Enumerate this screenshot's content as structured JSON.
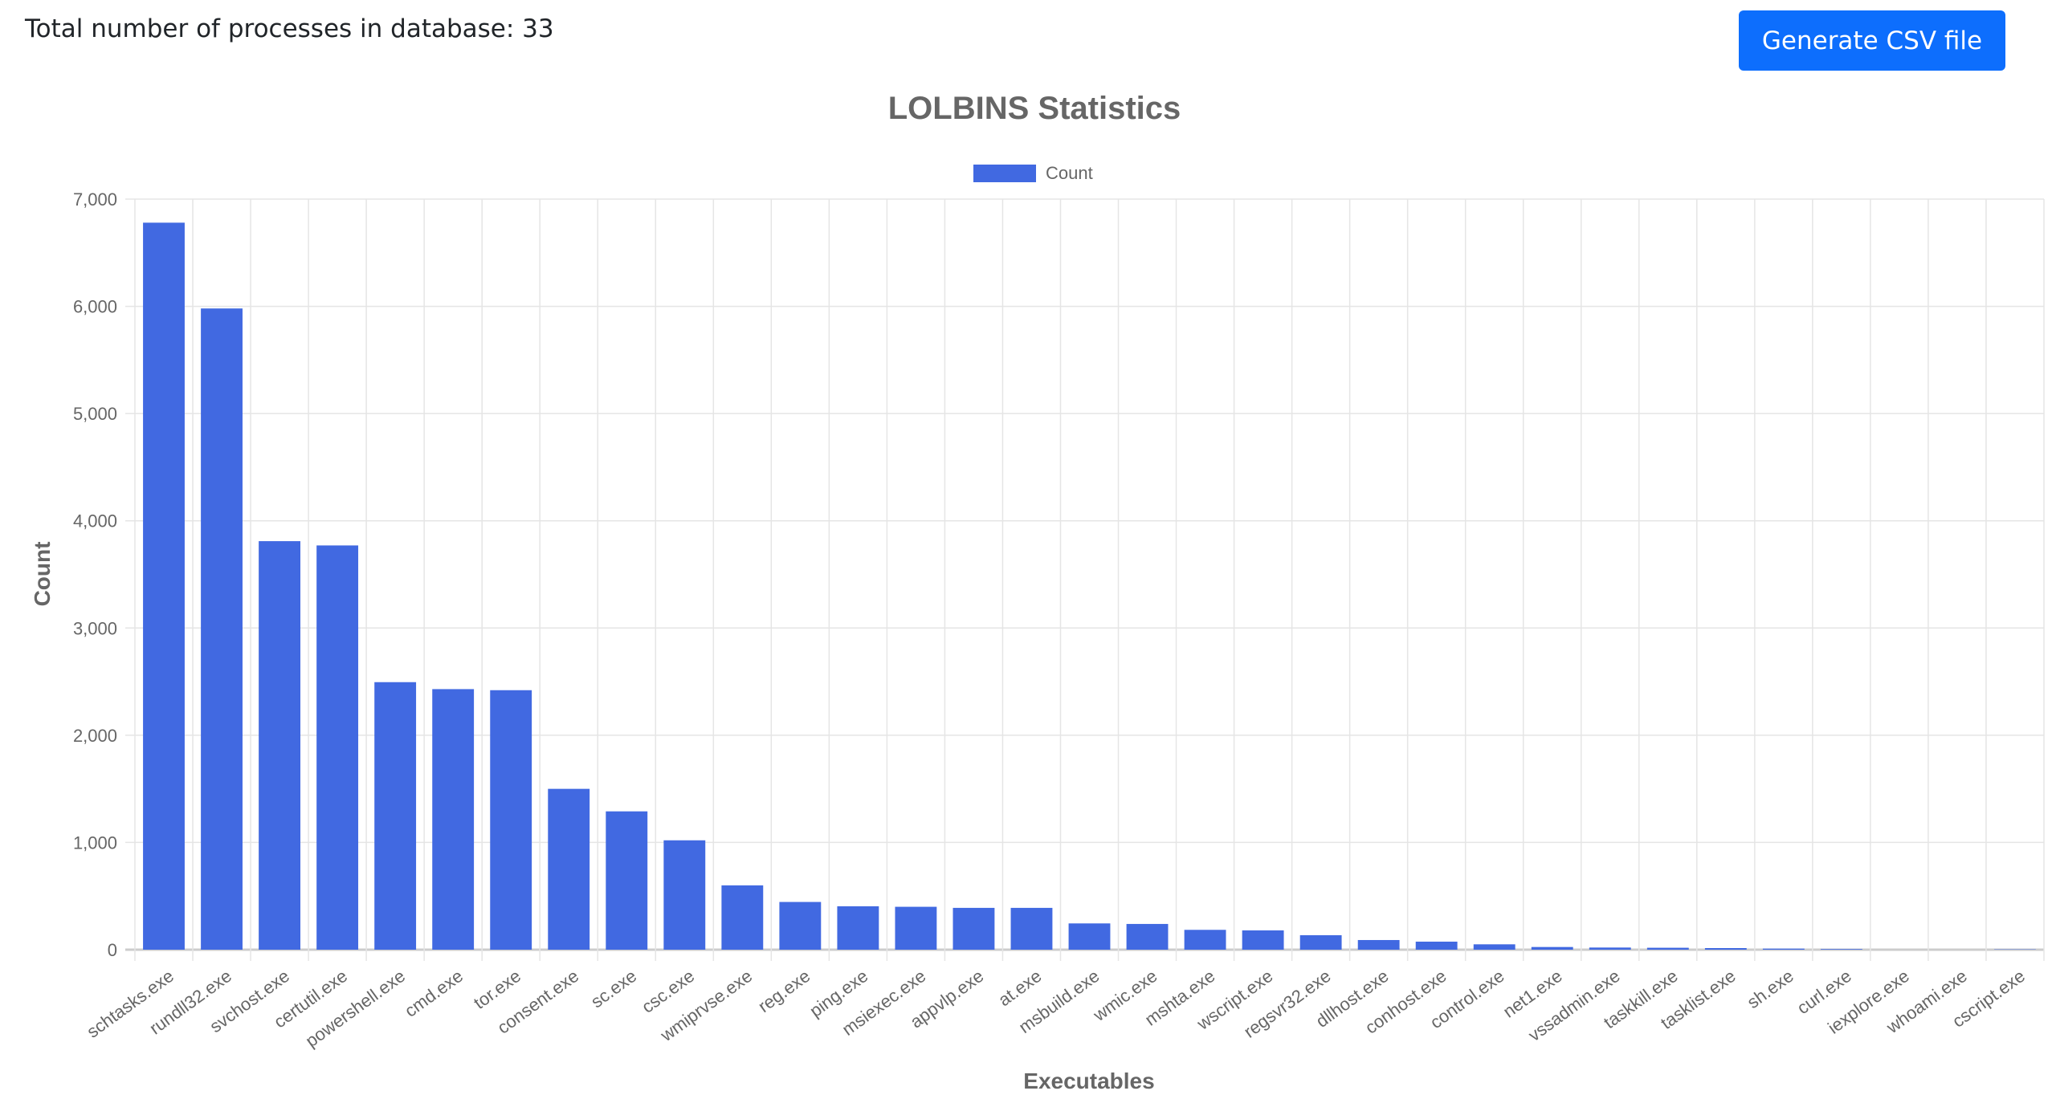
{
  "header": {
    "total_text": "Total number of processes in database: 33",
    "csv_button": "Generate CSV file"
  },
  "colors": {
    "bar": "#4169e1",
    "button": "#0d6efd"
  },
  "chart_data": {
    "type": "bar",
    "title": "LOLBINS Statistics",
    "xlabel": "Executables",
    "ylabel": "Count",
    "legend": {
      "entries": [
        "Count"
      ],
      "placement": "top-center"
    },
    "ylim": [
      0,
      7000
    ],
    "yticks": [
      0,
      1000,
      2000,
      3000,
      4000,
      5000,
      6000,
      7000
    ],
    "ytick_labels": [
      "0",
      "1,000",
      "2,000",
      "3,000",
      "4,000",
      "5,000",
      "6,000",
      "7,000"
    ],
    "grid": true,
    "categories": [
      "schtasks.exe",
      "rundll32.exe",
      "svchost.exe",
      "certutil.exe",
      "powershell.exe",
      "cmd.exe",
      "tor.exe",
      "consent.exe",
      "sc.exe",
      "csc.exe",
      "wmiprvse.exe",
      "reg.exe",
      "ping.exe",
      "msiexec.exe",
      "appvlp.exe",
      "at.exe",
      "msbuild.exe",
      "wmic.exe",
      "mshta.exe",
      "wscript.exe",
      "regsvr32.exe",
      "dllhost.exe",
      "conhost.exe",
      "control.exe",
      "net1.exe",
      "vssadmin.exe",
      "taskkill.exe",
      "tasklist.exe",
      "sh.exe",
      "curl.exe",
      "iexplore.exe",
      "whoami.exe",
      "cscript.exe"
    ],
    "values": [
      6780,
      5980,
      3810,
      3770,
      2495,
      2430,
      2420,
      1500,
      1290,
      1020,
      600,
      445,
      405,
      400,
      390,
      390,
      245,
      240,
      185,
      180,
      135,
      90,
      75,
      50,
      25,
      20,
      18,
      15,
      10,
      6,
      0,
      0,
      3
    ]
  }
}
